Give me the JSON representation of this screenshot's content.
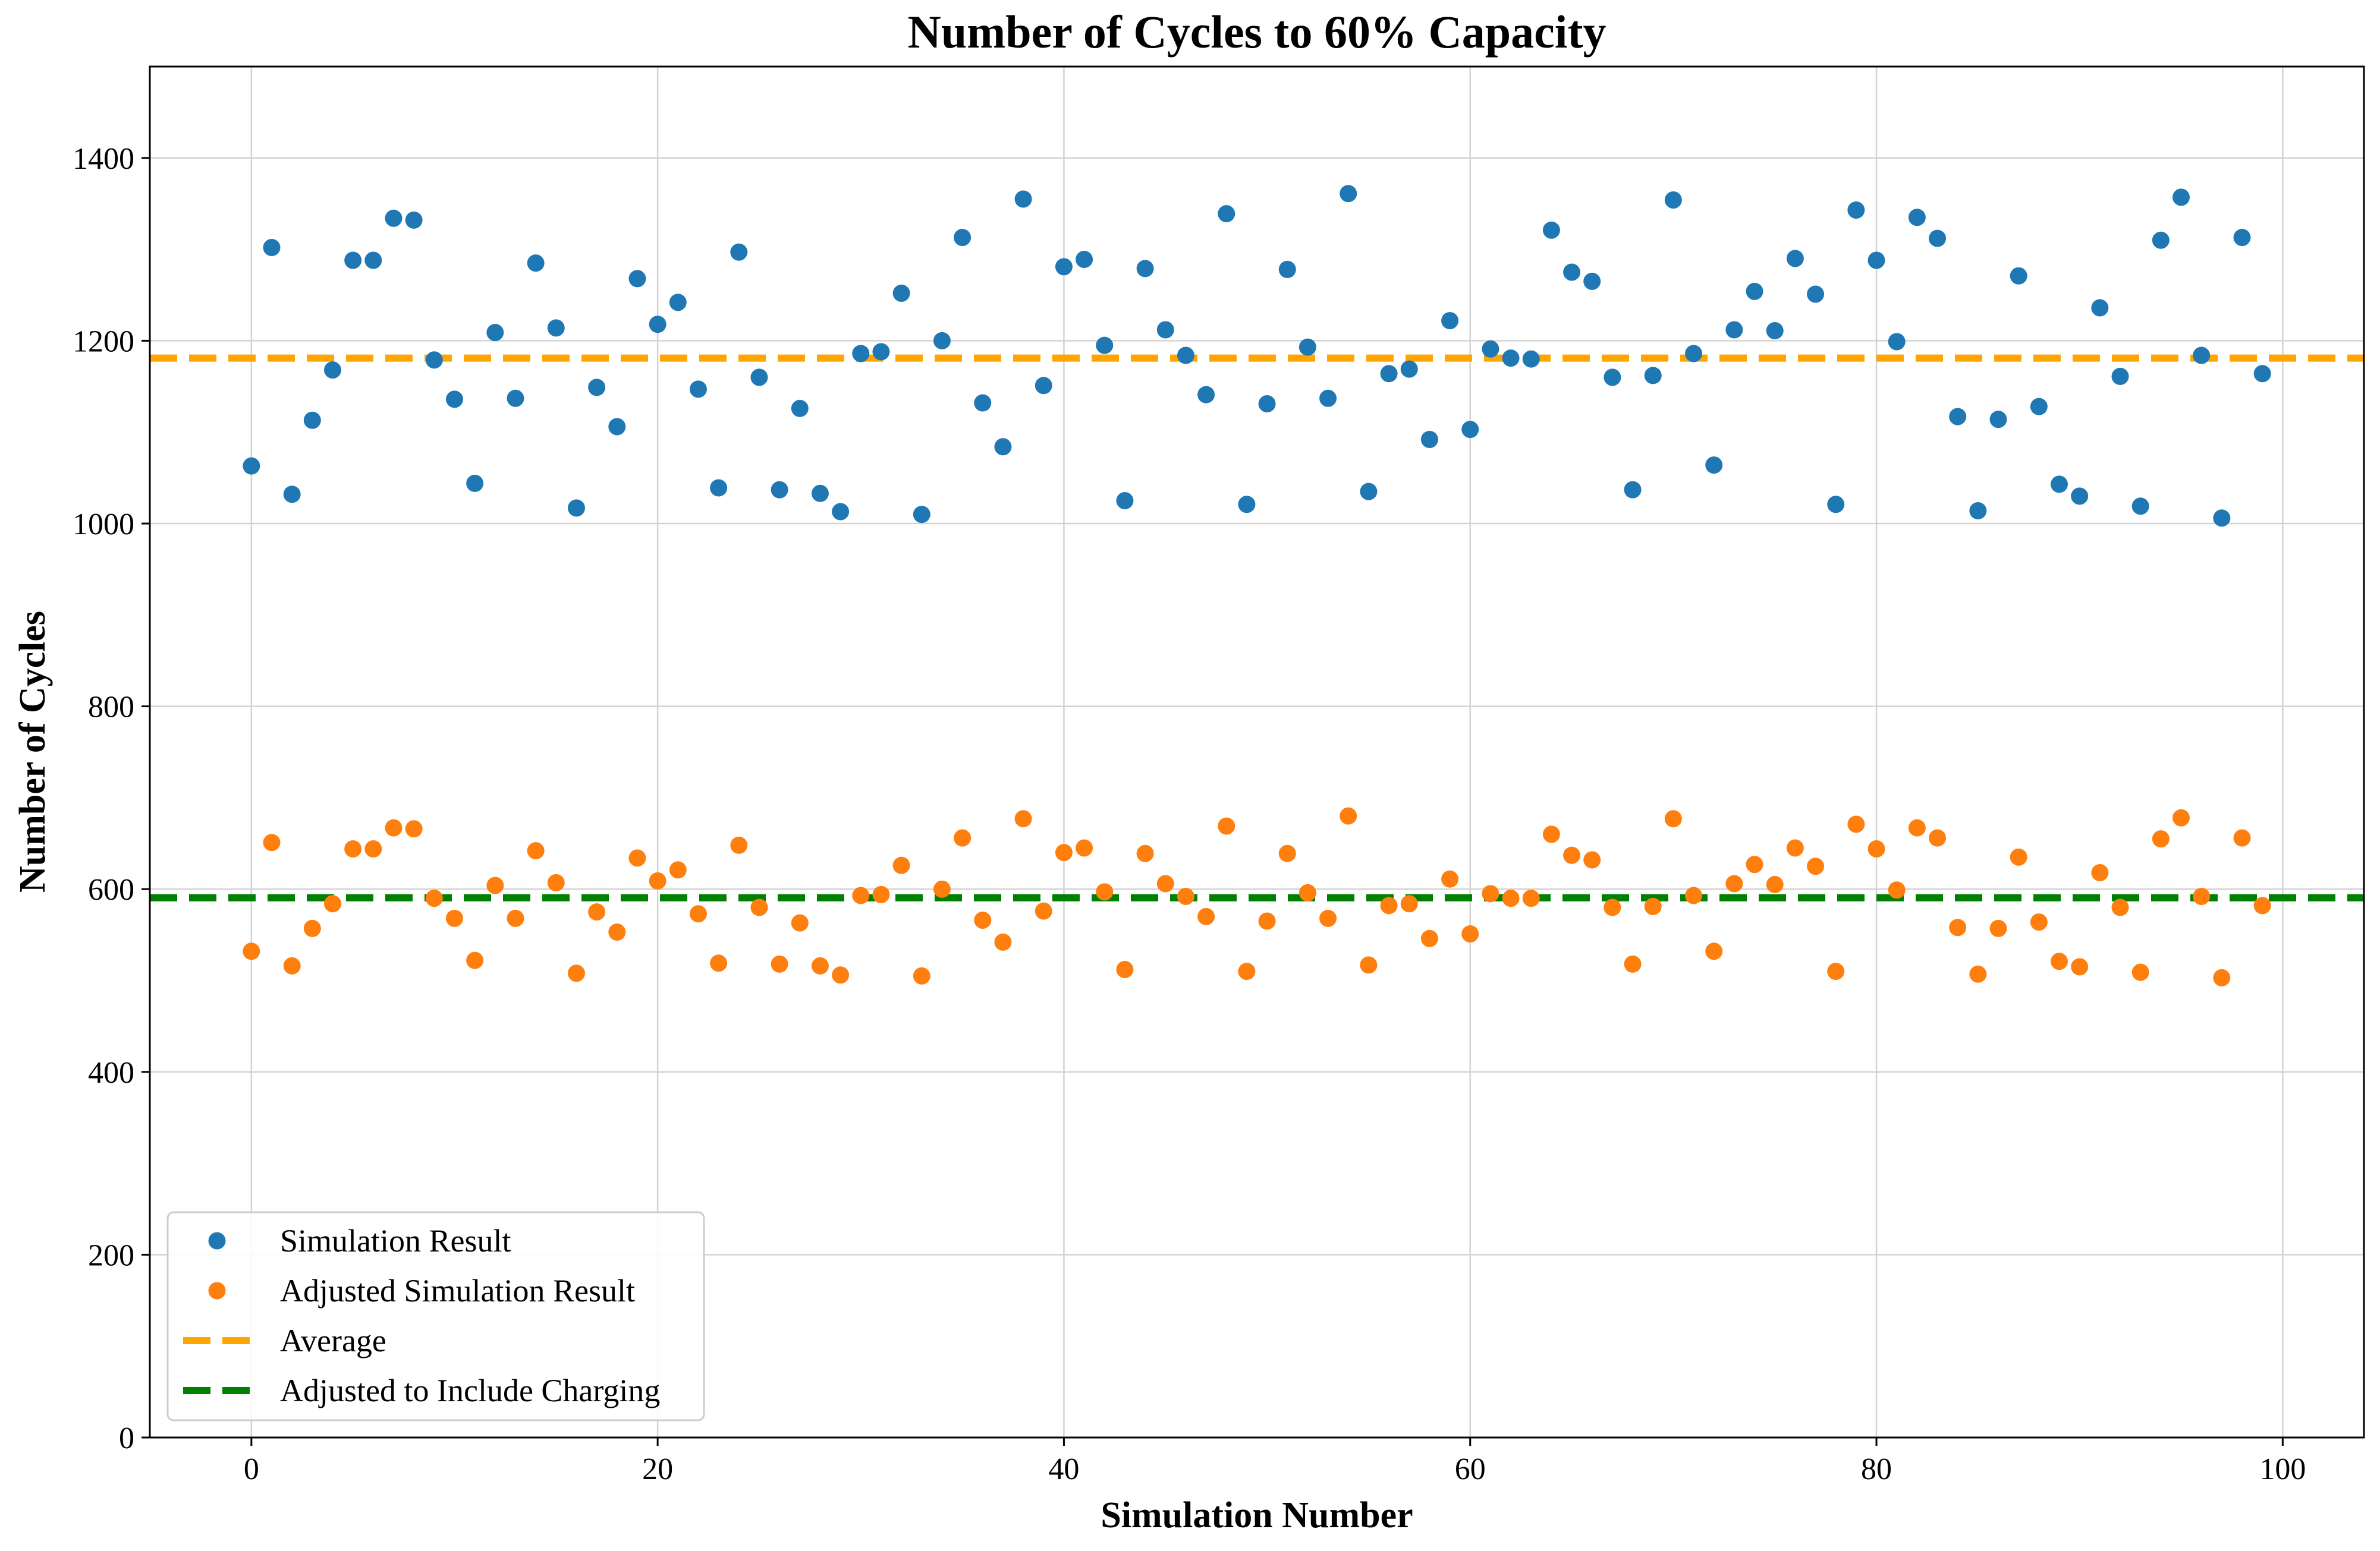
{
  "chart_data": {
    "type": "scatter",
    "title": "Number of Cycles to 60% Capacity",
    "xlabel": "Simulation Number",
    "ylabel": "Number of Cycles",
    "xlim": [
      -5,
      104
    ],
    "ylim": [
      0,
      1500
    ],
    "xticks": [
      0,
      20,
      40,
      60,
      80,
      100
    ],
    "yticks": [
      0,
      200,
      400,
      600,
      800,
      1000,
      1200,
      1400
    ],
    "grid": true,
    "legend_position": "lower-left",
    "x": [
      0,
      1,
      2,
      3,
      4,
      5,
      6,
      7,
      8,
      9,
      10,
      11,
      12,
      13,
      14,
      15,
      16,
      17,
      18,
      19,
      20,
      21,
      22,
      23,
      24,
      25,
      26,
      27,
      28,
      29,
      30,
      31,
      32,
      33,
      34,
      35,
      36,
      37,
      38,
      39,
      40,
      41,
      42,
      43,
      44,
      45,
      46,
      47,
      48,
      49,
      50,
      51,
      52,
      53,
      54,
      55,
      56,
      57,
      58,
      59,
      60,
      61,
      62,
      63,
      64,
      65,
      66,
      67,
      68,
      69,
      70,
      71,
      72,
      73,
      74,
      75,
      76,
      77,
      78,
      79,
      80,
      81,
      82,
      83,
      84,
      85,
      86,
      87,
      88,
      89,
      90,
      91,
      92,
      93,
      94,
      95,
      96,
      97,
      98,
      99
    ],
    "series": [
      {
        "name": "Simulation Result",
        "kind": "scatter",
        "color": "#1f77b4",
        "values": [
          1063,
          1302,
          1032,
          1113,
          1168,
          1288,
          1288,
          1334,
          1332,
          1179,
          1136,
          1044,
          1209,
          1137,
          1285,
          1214,
          1017,
          1149,
          1106,
          1268,
          1218,
          1242,
          1147,
          1039,
          1297,
          1160,
          1037,
          1126,
          1033,
          1013,
          1186,
          1188,
          1252,
          1010,
          1200,
          1313,
          1132,
          1084,
          1355,
          1151,
          1281,
          1289,
          1195,
          1025,
          1279,
          1212,
          1184,
          1141,
          1339,
          1021,
          1131,
          1278,
          1193,
          1137,
          1361,
          1035,
          1164,
          1169,
          1092,
          1222,
          1103,
          1191,
          1181,
          1180,
          1321,
          1275,
          1265,
          1160,
          1037,
          1162,
          1354,
          1186,
          1064,
          1212,
          1254,
          1211,
          1290,
          1251,
          1021,
          1343,
          1288,
          1199,
          1335,
          1312,
          1117,
          1014,
          1114,
          1271,
          1128,
          1043,
          1030,
          1236,
          1161,
          1019,
          1310,
          1357,
          1184,
          1006,
          1313,
          1164
        ]
      },
      {
        "name": "Adjusted Simulation Result",
        "kind": "scatter",
        "color": "#ff7f0e",
        "values": [
          532,
          651,
          516,
          557,
          584,
          644,
          644,
          667,
          666,
          590,
          568,
          522,
          604,
          568,
          642,
          607,
          508,
          575,
          553,
          634,
          609,
          621,
          573,
          519,
          648,
          580,
          518,
          563,
          516,
          506,
          593,
          594,
          626,
          505,
          600,
          656,
          566,
          542,
          677,
          576,
          640,
          645,
          597,
          512,
          639,
          606,
          592,
          570,
          669,
          510,
          565,
          639,
          596,
          568,
          680,
          517,
          582,
          584,
          546,
          611,
          551,
          595,
          590,
          590,
          660,
          637,
          632,
          580,
          518,
          581,
          677,
          593,
          532,
          606,
          627,
          605,
          645,
          625,
          510,
          671,
          644,
          599,
          667,
          656,
          558,
          507,
          557,
          635,
          564,
          521,
          515,
          618,
          580,
          509,
          655,
          678,
          592,
          503,
          656,
          582
        ]
      },
      {
        "name": "Average",
        "kind": "hline",
        "color": "#ffa500",
        "value": 1181
      },
      {
        "name": "Adjusted to Include Charging",
        "kind": "hline",
        "color": "#008000",
        "value": 590.5
      }
    ]
  }
}
